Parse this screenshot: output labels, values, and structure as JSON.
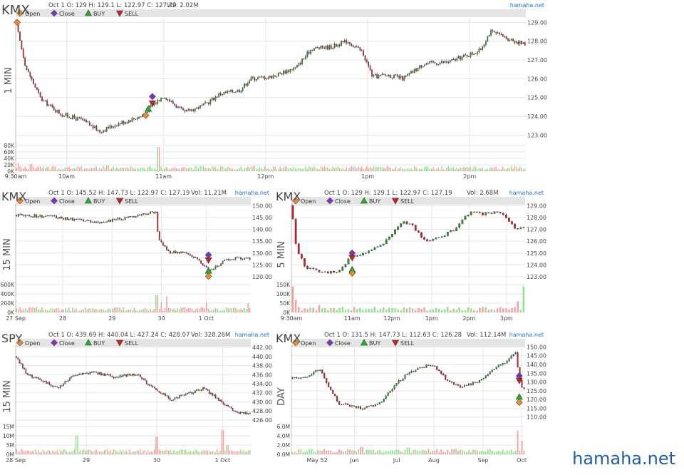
{
  "watermark": "hamaha.net",
  "legend_items": [
    {
      "label": "Open",
      "marker": "diamond",
      "color": "#f28c1e"
    },
    {
      "label": "Close",
      "marker": "diamond",
      "color": "#7d2fc6"
    },
    {
      "label": "BUY",
      "marker": "triangle-up",
      "color": "#22b422"
    },
    {
      "label": "SELL",
      "marker": "triangle-down",
      "color": "#cc2222"
    }
  ],
  "colors": {
    "up": "#2e8b2e",
    "down": "#c8202a",
    "vol_up": "#8fe08f",
    "vol_down": "#f2a0a0",
    "grid": "#e6e6e6",
    "legend_bar": "#e4e4e4",
    "brand": "#1f6fd0"
  },
  "chart_data": [
    {
      "id": "kmx-1min",
      "type": "candlestick",
      "symbol": "KMX",
      "timeframe": "1 MIN",
      "brand": "hamaha.net",
      "info": "Oct 1 O: 129 H: 129.1 L: 122.97 C: 127.79",
      "vol_text": "Vol: 2.02M",
      "ylim": [
        122.6,
        129.2
      ],
      "y_ticks": [
        "129.00",
        "128.00",
        "127.00",
        "126.00",
        "125.00",
        "124.00",
        "123.00"
      ],
      "vol_ticks": [
        "80K",
        "60K",
        "40K",
        "20K",
        "0K"
      ],
      "vol_max": 90000,
      "x_ticks": [
        {
          "label": "9:30am",
          "pos": 0
        },
        {
          "label": "10am",
          "pos": 0.1
        },
        {
          "label": "11am",
          "pos": 0.29
        },
        {
          "label": "12pm",
          "pos": 0.49
        },
        {
          "label": "1pm",
          "pos": 0.69
        },
        {
          "label": "2pm",
          "pos": 0.89
        }
      ],
      "n": 300,
      "path": [
        [
          0,
          129.0
        ],
        [
          0.02,
          126.6
        ],
        [
          0.05,
          124.9
        ],
        [
          0.09,
          124.1
        ],
        [
          0.13,
          123.8
        ],
        [
          0.165,
          123.2
        ],
        [
          0.2,
          123.6
        ],
        [
          0.245,
          124.0
        ],
        [
          0.265,
          124.5
        ],
        [
          0.29,
          125.1
        ],
        [
          0.33,
          124.2
        ],
        [
          0.37,
          124.6
        ],
        [
          0.4,
          125.2
        ],
        [
          0.44,
          125.4
        ],
        [
          0.46,
          126.0
        ],
        [
          0.5,
          126.1
        ],
        [
          0.55,
          126.6
        ],
        [
          0.58,
          127.6
        ],
        [
          0.62,
          127.7
        ],
        [
          0.65,
          128.0
        ],
        [
          0.68,
          127.4
        ],
        [
          0.7,
          126.1
        ],
        [
          0.73,
          126.2
        ],
        [
          0.76,
          126.0
        ],
        [
          0.8,
          126.8
        ],
        [
          0.85,
          126.9
        ],
        [
          0.88,
          127.2
        ],
        [
          0.91,
          127.5
        ],
        [
          0.93,
          128.5
        ],
        [
          0.96,
          128.2
        ],
        [
          1.0,
          127.8
        ]
      ],
      "vol_spikes": [
        [
          0.005,
          30000
        ],
        [
          0.28,
          85000
        ],
        [
          0.03,
          25000
        ],
        [
          0.18,
          20000
        ]
      ],
      "markers": [
        {
          "kind": "Open",
          "pos": 0.003,
          "y": 129.0
        },
        {
          "kind": "Close",
          "pos": 0.268,
          "y": 125.05
        },
        {
          "kind": "SELL",
          "pos": 0.268,
          "y": 124.7
        },
        {
          "kind": "BUY",
          "pos": 0.26,
          "y": 124.4
        },
        {
          "kind": "Open",
          "pos": 0.255,
          "y": 124.05
        }
      ]
    },
    {
      "id": "kmx-15min",
      "type": "candlestick",
      "symbol": "KMX",
      "timeframe": "15 MIN",
      "brand": "hamaha.net",
      "info": "Oct 1 O: 145.52 H: 147.73 L: 122.97 C: 127.19",
      "vol_text": "Vol: 11.21M",
      "ylim": [
        118.5,
        151
      ],
      "y_ticks": [
        "150.00",
        "145.00",
        "140.00",
        "135.00",
        "130.00",
        "125.00",
        "120.00"
      ],
      "vol_ticks": [
        "600K",
        "400K",
        "200K",
        "0K"
      ],
      "vol_max": 650000,
      "x_ticks": [
        {
          "label": "27 Sep",
          "pos": 0.0
        },
        {
          "label": "28",
          "pos": 0.2
        },
        {
          "label": "29",
          "pos": 0.41
        },
        {
          "label": "30",
          "pos": 0.62
        },
        {
          "label": "1 Oct",
          "pos": 0.81
        }
      ],
      "n": 130,
      "path": [
        [
          0,
          146.0
        ],
        [
          0.15,
          145.5
        ],
        [
          0.25,
          144.0
        ],
        [
          0.35,
          143.0
        ],
        [
          0.45,
          144.5
        ],
        [
          0.6,
          147.5
        ],
        [
          0.605,
          136.0
        ],
        [
          0.65,
          130.5
        ],
        [
          0.72,
          130.0
        ],
        [
          0.78,
          127.0
        ],
        [
          0.82,
          122.5
        ],
        [
          0.85,
          124.0
        ],
        [
          0.9,
          127.5
        ],
        [
          0.95,
          128.0
        ],
        [
          1.0,
          127.2
        ]
      ],
      "vol_spikes": [
        [
          0.6,
          400000
        ],
        [
          0.64,
          380000
        ],
        [
          0.62,
          230000
        ],
        [
          0.81,
          230000
        ],
        [
          0.99,
          210000
        ]
      ],
      "markers": [
        {
          "kind": "Close",
          "pos": 0.82,
          "y": 129.2
        },
        {
          "kind": "SELL",
          "pos": 0.82,
          "y": 127.0
        },
        {
          "kind": "BUY",
          "pos": 0.82,
          "y": 122.5
        },
        {
          "kind": "Open",
          "pos": 0.82,
          "y": 120.2
        }
      ]
    },
    {
      "id": "kmx-5min",
      "type": "candlestick",
      "symbol": "KMX",
      "timeframe": "5 MIN",
      "brand": "hamaha.net",
      "info": "Oct 1 O: 129 H: 129.1 L: 122.97 C: 127.19",
      "vol_text": "Vol: 2.68M",
      "ylim": [
        122.7,
        129.2
      ],
      "y_ticks": [
        "129.00",
        "128.00",
        "127.00",
        "126.00",
        "125.00",
        "124.00",
        "123.00"
      ],
      "vol_ticks": [
        "150K",
        "100K",
        "50K",
        "0K"
      ],
      "vol_max": 150000,
      "x_ticks": [
        {
          "label": "9:30am",
          "pos": 0.0
        },
        {
          "label": "11am",
          "pos": 0.26
        },
        {
          "label": "12pm",
          "pos": 0.43
        },
        {
          "label": "1pm",
          "pos": 0.6
        },
        {
          "label": "2pm",
          "pos": 0.76
        },
        {
          "label": "3pm",
          "pos": 0.92
        }
      ],
      "n": 80,
      "path": [
        [
          0,
          129.0
        ],
        [
          0.02,
          125.5
        ],
        [
          0.06,
          123.8
        ],
        [
          0.12,
          123.4
        ],
        [
          0.2,
          123.4
        ],
        [
          0.26,
          124.8
        ],
        [
          0.32,
          125.0
        ],
        [
          0.38,
          125.6
        ],
        [
          0.44,
          126.8
        ],
        [
          0.48,
          127.7
        ],
        [
          0.52,
          127.3
        ],
        [
          0.56,
          126.2
        ],
        [
          0.6,
          126.0
        ],
        [
          0.66,
          126.6
        ],
        [
          0.7,
          127.0
        ],
        [
          0.76,
          128.4
        ],
        [
          0.82,
          128.3
        ],
        [
          0.88,
          128.5
        ],
        [
          0.92,
          128.0
        ],
        [
          0.96,
          126.9
        ],
        [
          1.0,
          127.2
        ]
      ],
      "vol_spikes": [
        [
          0.0,
          140000
        ],
        [
          0.02,
          70000
        ],
        [
          0.99,
          140000
        ],
        [
          0.97,
          60000
        ],
        [
          0.12,
          40000
        ]
      ],
      "markers": [
        {
          "kind": "Close",
          "pos": 0.26,
          "y": 125.0
        },
        {
          "kind": "SELL",
          "pos": 0.26,
          "y": 124.6
        },
        {
          "kind": "BUY",
          "pos": 0.26,
          "y": 123.6
        },
        {
          "kind": "Open",
          "pos": 0.26,
          "y": 123.3
        }
      ]
    },
    {
      "id": "spy-15min",
      "type": "candlestick",
      "symbol": "SPY",
      "timeframe": "15 MIN",
      "brand": "hamaha.net",
      "info": "Oct 1 O: 439.69 H: 440.04 L: 427.24 C: 428.07",
      "vol_text": "Vol: 328.26M",
      "ylim": [
        425.5,
        442.5
      ],
      "y_ticks": [
        "442.00",
        "440.00",
        "438.00",
        "436.00",
        "434.00",
        "432.00",
        "430.00",
        "428.00",
        "426.00"
      ],
      "vol_ticks": [
        "15M",
        "10M",
        "5M",
        "0M"
      ],
      "vol_max": 15000000,
      "x_ticks": [
        {
          "label": "28 Sep",
          "pos": 0.0
        },
        {
          "label": "29",
          "pos": 0.3
        },
        {
          "label": "30",
          "pos": 0.6
        },
        {
          "label": "1 Oct",
          "pos": 0.88
        }
      ],
      "n": 150,
      "path": [
        [
          0,
          440.0
        ],
        [
          0.05,
          436.0
        ],
        [
          0.12,
          434.5
        ],
        [
          0.18,
          433.0
        ],
        [
          0.25,
          436.0
        ],
        [
          0.33,
          436.5
        ],
        [
          0.42,
          435.5
        ],
        [
          0.48,
          436.0
        ],
        [
          0.52,
          436.0
        ],
        [
          0.56,
          434.0
        ],
        [
          0.62,
          432.0
        ],
        [
          0.66,
          430.5
        ],
        [
          0.72,
          431.5
        ],
        [
          0.8,
          433.0
        ],
        [
          0.85,
          431.0
        ],
        [
          0.9,
          429.0
        ],
        [
          0.94,
          427.5
        ]
      ],
      "vol_spikes": [
        [
          0.26,
          10000000
        ],
        [
          0.6,
          9500000
        ],
        [
          0.88,
          13000000
        ],
        [
          0.9,
          5000000
        ]
      ],
      "markers": []
    },
    {
      "id": "kmx-day",
      "type": "candlestick",
      "symbol": "KMX",
      "timeframe": "DAY",
      "brand": "hamaha.net",
      "info": "Oct 1 O: 131.5 H: 147.73 L: 112.63 C: 126.28",
      "vol_text": "Vol: 112.14M",
      "ylim": [
        107,
        151
      ],
      "y_ticks": [
        "150.00",
        "145.00",
        "140.00",
        "135.00",
        "130.00",
        "125.00",
        "120.00",
        "115.00",
        "110.00"
      ],
      "vol_ticks": [
        "6.0M",
        "4.0M",
        "2.0M",
        "0.0M"
      ],
      "vol_max": 6200000,
      "x_ticks": [
        {
          "label": "May 52",
          "pos": 0.11
        },
        {
          "label": "Jun",
          "pos": 0.27
        },
        {
          "label": "Jul",
          "pos": 0.45
        },
        {
          "label": "Aug",
          "pos": 0.61
        },
        {
          "label": "Sep",
          "pos": 0.82
        },
        {
          "label": "Oct",
          "pos": 0.985
        }
      ],
      "n": 110,
      "path": [
        [
          0,
          132.0
        ],
        [
          0.06,
          133.0
        ],
        [
          0.12,
          137.0
        ],
        [
          0.15,
          130.0
        ],
        [
          0.2,
          118.0
        ],
        [
          0.3,
          115.0
        ],
        [
          0.38,
          118.0
        ],
        [
          0.44,
          128.0
        ],
        [
          0.5,
          135.0
        ],
        [
          0.55,
          138.0
        ],
        [
          0.6,
          140.0
        ],
        [
          0.66,
          132.0
        ],
        [
          0.72,
          127.0
        ],
        [
          0.8,
          130.0
        ],
        [
          0.86,
          137.0
        ],
        [
          0.92,
          142.0
        ],
        [
          0.96,
          147.0
        ],
        [
          0.975,
          131.0
        ],
        [
          0.99,
          126.3
        ]
      ],
      "vol_spikes": [
        [
          0.97,
          5300000
        ],
        [
          0.99,
          3000000
        ],
        [
          0.3,
          1600000
        ],
        [
          0.5,
          1500000
        ]
      ],
      "markers": [
        {
          "kind": "Close",
          "pos": 0.975,
          "y": 133.5
        },
        {
          "kind": "SELL",
          "pos": 0.975,
          "y": 130.8
        },
        {
          "kind": "BUY",
          "pos": 0.975,
          "y": 121.5
        },
        {
          "kind": "Open",
          "pos": 0.975,
          "y": 118.3
        }
      ]
    }
  ]
}
